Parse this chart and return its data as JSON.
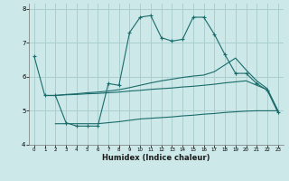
{
  "xlabel": "Humidex (Indice chaleur)",
  "background_color": "#cce8e8",
  "grid_color": "#aacece",
  "line_color": "#1a6b6b",
  "xlim": [
    -0.5,
    23.5
  ],
  "ylim": [
    4,
    8.15
  ],
  "yticks": [
    4,
    5,
    6,
    7,
    8
  ],
  "xticks": [
    0,
    1,
    2,
    3,
    4,
    5,
    6,
    7,
    8,
    9,
    10,
    11,
    12,
    13,
    14,
    15,
    16,
    17,
    18,
    19,
    20,
    21,
    22,
    23
  ],
  "series1_x": [
    0,
    1,
    2,
    3,
    4,
    5,
    6,
    7,
    8,
    9,
    10,
    11,
    12,
    13,
    14,
    15,
    16,
    17,
    18,
    19,
    20,
    21,
    22,
    23
  ],
  "series1_y": [
    6.6,
    5.45,
    5.45,
    4.65,
    4.55,
    4.55,
    4.55,
    5.8,
    5.75,
    7.3,
    7.75,
    7.8,
    7.15,
    7.05,
    7.1,
    7.75,
    7.75,
    7.25,
    6.65,
    6.1,
    6.1,
    5.8,
    5.6,
    4.95
  ],
  "series2_x": [
    1,
    2,
    3,
    4,
    5,
    6,
    7,
    8,
    9,
    10,
    11,
    12,
    13,
    14,
    15,
    16,
    17,
    18,
    19,
    20,
    21,
    22,
    23
  ],
  "series2_y": [
    5.45,
    5.45,
    5.48,
    5.5,
    5.53,
    5.55,
    5.58,
    5.62,
    5.68,
    5.75,
    5.82,
    5.88,
    5.93,
    5.98,
    6.02,
    6.05,
    6.15,
    6.35,
    6.55,
    6.2,
    5.88,
    5.65,
    5.0
  ],
  "series3_x": [
    1,
    2,
    3,
    4,
    5,
    6,
    7,
    8,
    9,
    10,
    11,
    12,
    13,
    14,
    15,
    16,
    17,
    18,
    19,
    20,
    21,
    22,
    23
  ],
  "series3_y": [
    5.45,
    5.45,
    5.47,
    5.48,
    5.5,
    5.51,
    5.53,
    5.55,
    5.58,
    5.6,
    5.63,
    5.65,
    5.67,
    5.7,
    5.72,
    5.75,
    5.78,
    5.82,
    5.85,
    5.88,
    5.75,
    5.62,
    5.0
  ],
  "series4_x": [
    2,
    3,
    4,
    5,
    6,
    7,
    8,
    9,
    10,
    11,
    12,
    13,
    14,
    15,
    16,
    17,
    18,
    19,
    20,
    21,
    22,
    23
  ],
  "series4_y": [
    4.62,
    4.62,
    4.62,
    4.62,
    4.62,
    4.65,
    4.68,
    4.72,
    4.76,
    4.78,
    4.8,
    4.82,
    4.85,
    4.87,
    4.9,
    4.92,
    4.95,
    4.97,
    4.99,
    5.0,
    5.0,
    5.0
  ]
}
